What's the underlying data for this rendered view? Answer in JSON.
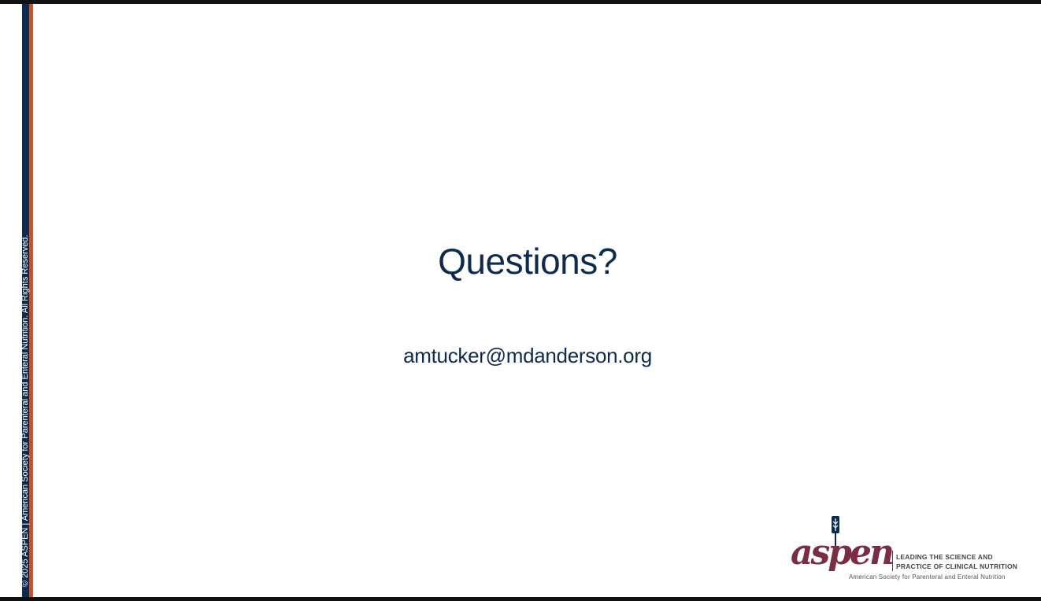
{
  "slide": {
    "title": "Questions?",
    "email": "amtucker@mdanderson.org",
    "copyright": "© 2025 ASPEN | American Society for Parenteral and Enteral Nutrition.  All Rights Reserved."
  },
  "logo": {
    "wordmark": "aspen",
    "tagline_line1": "LEADING THE SCIENCE AND",
    "tagline_line2": "PRACTICE OF CLINICAL NUTRITION",
    "subtitle": "American Society for Parenteral and Enteral Nutrition",
    "icon": "wheat-icon"
  },
  "colors": {
    "navy": "#0e2a4f",
    "accent": "#c8532a",
    "brand": "#7a2e44"
  }
}
